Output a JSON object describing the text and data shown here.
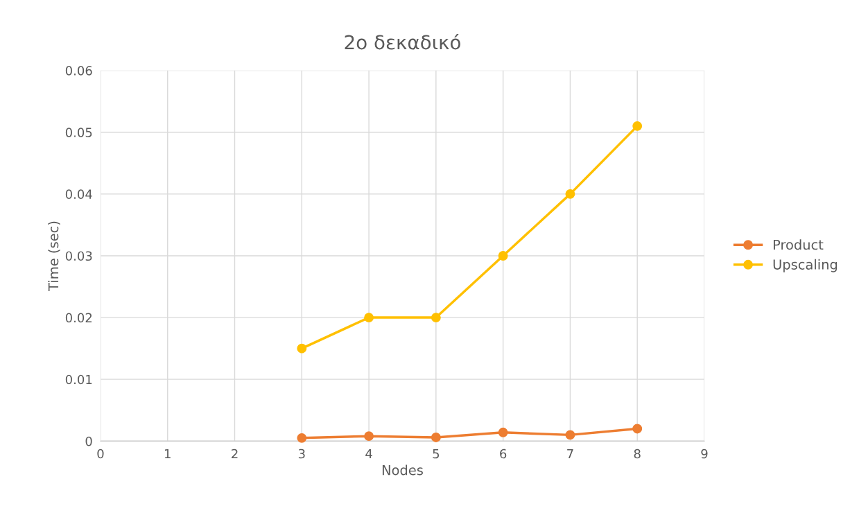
{
  "chart_data": {
    "type": "line",
    "title": "2ο δεκαδικό",
    "xlabel": "Nodes",
    "ylabel": "Time (sec)",
    "x": [
      3,
      4,
      5,
      6,
      7,
      8
    ],
    "series": [
      {
        "name": "Product",
        "color": "#ed7d31",
        "values": [
          0.0005,
          0.0008,
          0.0006,
          0.0014,
          0.001,
          0.002
        ]
      },
      {
        "name": "Upscaling",
        "color": "#ffc000",
        "values": [
          0.015,
          0.02,
          0.02,
          0.03,
          0.04,
          0.051
        ]
      }
    ],
    "xlim": [
      0,
      9
    ],
    "xticks": [
      0,
      1,
      2,
      3,
      4,
      5,
      6,
      7,
      8,
      9
    ],
    "ylim": [
      0,
      0.06
    ],
    "yticks": [
      0,
      0.01,
      0.02,
      0.03,
      0.04,
      0.05,
      0.06
    ],
    "grid": true,
    "legend": "right",
    "marker": "circle",
    "line_style": "solid"
  }
}
